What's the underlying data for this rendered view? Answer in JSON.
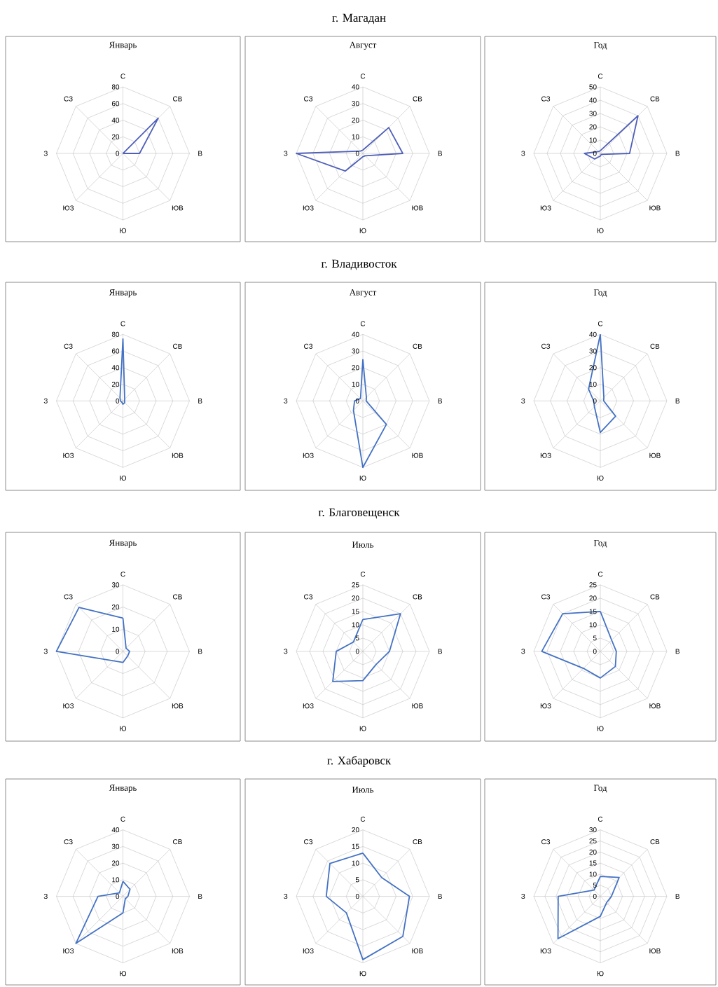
{
  "chart_data": [
    {
      "type": "other",
      "title": "г. Магадан"
    },
    {
      "type": "radar",
      "title": "Январь",
      "categories": [
        "С",
        "СВ",
        "В",
        "ЮВ",
        "Ю",
        "ЮЗ",
        "З",
        "СЗ"
      ],
      "ylim": [
        0,
        80
      ],
      "yticks": [
        0,
        20,
        40,
        60,
        80
      ],
      "grid": true,
      "series": [
        {
          "color": "#4f5fb8",
          "values": [
            0,
            60,
            20,
            0,
            0,
            0,
            0,
            0
          ]
        }
      ]
    },
    {
      "type": "radar",
      "title": "Август",
      "categories": [
        "С",
        "СВ",
        "В",
        "ЮВ",
        "Ю",
        "ЮЗ",
        "З",
        "СЗ"
      ],
      "ylim": [
        0,
        40
      ],
      "yticks": [
        0,
        10,
        20,
        30,
        40
      ],
      "grid": true,
      "series": [
        {
          "color": "#4f5fb8",
          "values": [
            2,
            22,
            24,
            2,
            2,
            15,
            40,
            2
          ]
        }
      ]
    },
    {
      "type": "radar",
      "title": "Год",
      "categories": [
        "С",
        "СВ",
        "В",
        "ЮВ",
        "Ю",
        "ЮЗ",
        "З",
        "СЗ"
      ],
      "ylim": [
        0,
        50
      ],
      "yticks": [
        0,
        10,
        20,
        30,
        40,
        50
      ],
      "grid": true,
      "series": [
        {
          "color": "#4f5fb8",
          "values": [
            2,
            40,
            22,
            1,
            2,
            6,
            12,
            2
          ]
        }
      ]
    },
    {
      "type": "other",
      "title": "г. Владивосток"
    },
    {
      "type": "radar",
      "title": "Январь",
      "categories": [
        "С",
        "СВ",
        "В",
        "ЮВ",
        "Ю",
        "ЮЗ",
        "З",
        "СЗ"
      ],
      "ylim": [
        0,
        80
      ],
      "yticks": [
        0,
        20,
        40,
        60,
        80
      ],
      "grid": true,
      "series": [
        {
          "color": "#4472c4",
          "values": [
            75,
            3,
            2,
            3,
            4,
            2,
            3,
            5
          ]
        }
      ]
    },
    {
      "type": "radar",
      "title": "Август",
      "categories": [
        "С",
        "СВ",
        "В",
        "ЮВ",
        "Ю",
        "ЮЗ",
        "З",
        "СЗ"
      ],
      "ylim": [
        0,
        40
      ],
      "yticks": [
        0,
        10,
        20,
        30,
        40
      ],
      "grid": true,
      "series": [
        {
          "color": "#4472c4",
          "values": [
            25,
            3,
            2,
            20,
            40,
            8,
            5,
            2
          ]
        }
      ]
    },
    {
      "type": "radar",
      "title": "Год",
      "categories": [
        "С",
        "СВ",
        "В",
        "ЮВ",
        "Ю",
        "ЮЗ",
        "З",
        "СЗ"
      ],
      "ylim": [
        0,
        40
      ],
      "yticks": [
        0,
        10,
        20,
        30,
        40
      ],
      "grid": true,
      "series": [
        {
          "color": "#4472c4",
          "values": [
            40,
            3,
            2,
            13,
            19,
            5,
            4,
            10
          ]
        }
      ]
    },
    {
      "type": "other",
      "title": "г. Благовещенск"
    },
    {
      "type": "radar",
      "title": "Январь",
      "categories": [
        "С",
        "СВ",
        "В",
        "ЮВ",
        "Ю",
        "ЮЗ",
        "З",
        "СЗ"
      ],
      "ylim": [
        0,
        30
      ],
      "yticks": [
        0,
        10,
        20,
        30
      ],
      "grid": true,
      "series": [
        {
          "color": "#4472c4",
          "values": [
            15,
            2,
            3,
            3,
            5,
            6,
            30,
            28
          ]
        }
      ]
    },
    {
      "type": "radar",
      "title": "Июль",
      "categories": [
        "С",
        "СВ",
        "В",
        "ЮВ",
        "Ю",
        "ЮЗ",
        "З",
        "СЗ"
      ],
      "ylim": [
        0,
        25
      ],
      "yticks": [
        0,
        5,
        10,
        15,
        20,
        25
      ],
      "grid": true,
      "series": [
        {
          "color": "#4472c4",
          "values": [
            12,
            20,
            10,
            7,
            11,
            16,
            10,
            5
          ]
        }
      ]
    },
    {
      "type": "radar",
      "title": "Год",
      "categories": [
        "С",
        "СВ",
        "В",
        "ЮВ",
        "Ю",
        "ЮЗ",
        "З",
        "СЗ"
      ],
      "ylim": [
        0,
        25
      ],
      "yticks": [
        0,
        5,
        10,
        15,
        20,
        25
      ],
      "grid": true,
      "series": [
        {
          "color": "#4472c4",
          "values": [
            15,
            6,
            6,
            8,
            10,
            9,
            22,
            20
          ]
        }
      ]
    },
    {
      "type": "other",
      "title": "г. Хабаровск"
    },
    {
      "type": "radar",
      "title": "Январь",
      "categories": [
        "С",
        "СВ",
        "В",
        "ЮВ",
        "Ю",
        "ЮЗ",
        "З",
        "СЗ"
      ],
      "ylim": [
        0,
        40
      ],
      "yticks": [
        0,
        10,
        20,
        30,
        40
      ],
      "grid": true,
      "series": [
        {
          "color": "#4472c4",
          "values": [
            9,
            6,
            3,
            2,
            10,
            40,
            15,
            3
          ]
        }
      ]
    },
    {
      "type": "radar",
      "title": "Июль",
      "categories": [
        "С",
        "СВ",
        "В",
        "ЮВ",
        "Ю",
        "ЮЗ",
        "З",
        "СЗ"
      ],
      "ylim": [
        0,
        20
      ],
      "yticks": [
        0,
        5,
        10,
        15,
        20
      ],
      "grid": true,
      "series": [
        {
          "color": "#4472c4",
          "values": [
            13,
            8,
            14,
            17,
            19,
            7,
            11,
            14
          ]
        }
      ]
    },
    {
      "type": "radar",
      "title": "Год",
      "categories": [
        "С",
        "СВ",
        "В",
        "ЮВ",
        "Ю",
        "ЮЗ",
        "З",
        "СЗ"
      ],
      "ylim": [
        0,
        30
      ],
      "yticks": [
        0,
        5,
        10,
        15,
        20,
        25,
        30
      ],
      "grid": true,
      "series": [
        {
          "color": "#4472c4",
          "values": [
            9,
            12,
            5,
            4,
            9,
            27,
            19,
            4
          ]
        }
      ]
    }
  ]
}
